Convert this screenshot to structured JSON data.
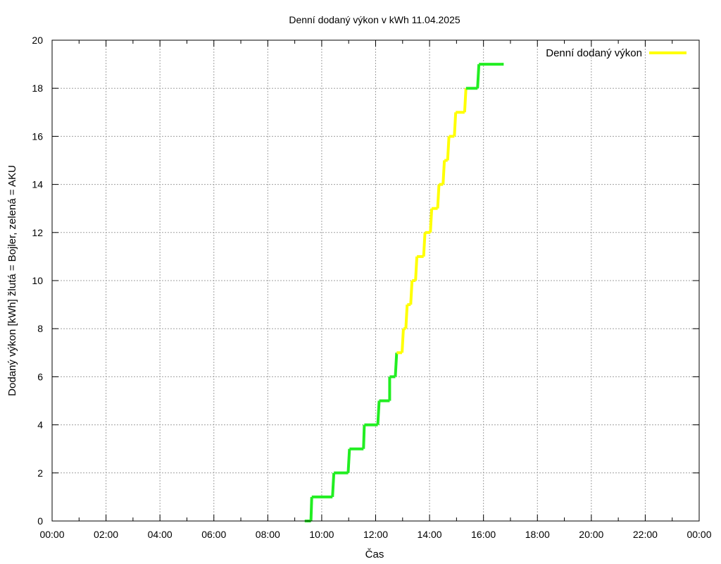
{
  "chart_data": {
    "type": "line",
    "title": "Denní dodaný výkon v kWh 11.04.2025",
    "xlabel": "Čas",
    "ylabel": "Dodaný výkon [kWh]  žlutá = Bojler, zelená = AKU",
    "xlim": [
      0,
      24
    ],
    "ylim": [
      0,
      20
    ],
    "x_ticks": [
      0,
      2,
      4,
      6,
      8,
      10,
      12,
      14,
      16,
      18,
      20,
      22,
      24
    ],
    "x_tick_labels": [
      "00:00",
      "02:00",
      "04:00",
      "06:00",
      "08:00",
      "10:00",
      "12:00",
      "14:00",
      "16:00",
      "18:00",
      "20:00",
      "22:00",
      "00:00"
    ],
    "y_ticks": [
      0,
      2,
      4,
      6,
      8,
      10,
      12,
      14,
      16,
      18,
      20
    ],
    "y_tick_labels": [
      "0",
      "2",
      "4",
      "6",
      "8",
      "10",
      "12",
      "14",
      "16",
      "18",
      "20"
    ],
    "grid": true,
    "legend": {
      "position": "top-right",
      "entries": [
        {
          "label": "Denní dodaný výkon",
          "color": "#ffff00"
        }
      ]
    },
    "colors": {
      "aku": "#22ee22",
      "bojler": "#ffff00",
      "grid": "#a0a0a0"
    },
    "series": [
      {
        "points": [
          {
            "x": 9.37,
            "y": 0,
            "c": "aku"
          },
          {
            "x": 9.42,
            "y": 0,
            "c": "aku"
          },
          {
            "x": 9.6,
            "y": 0,
            "c": "aku"
          },
          {
            "x": 9.63,
            "y": 1,
            "c": "aku"
          },
          {
            "x": 10.4,
            "y": 1,
            "c": "aku"
          },
          {
            "x": 10.45,
            "y": 2,
            "c": "aku"
          },
          {
            "x": 10.98,
            "y": 2,
            "c": "aku"
          },
          {
            "x": 11.03,
            "y": 3,
            "c": "aku"
          },
          {
            "x": 11.55,
            "y": 3,
            "c": "aku"
          },
          {
            "x": 11.58,
            "y": 4,
            "c": "aku"
          },
          {
            "x": 12.08,
            "y": 4,
            "c": "aku"
          },
          {
            "x": 12.13,
            "y": 5,
            "c": "aku"
          },
          {
            "x": 12.52,
            "y": 5,
            "c": "aku"
          },
          {
            "x": 12.52,
            "y": 6,
            "c": "aku"
          },
          {
            "x": 12.73,
            "y": 6,
            "c": "aku"
          },
          {
            "x": 12.78,
            "y": 7,
            "c": "aku"
          },
          {
            "x": 12.78,
            "y": 7,
            "c": "bojler"
          },
          {
            "x": 12.98,
            "y": 7,
            "c": "bojler"
          },
          {
            "x": 13.03,
            "y": 8,
            "c": "bojler"
          },
          {
            "x": 13.12,
            "y": 8,
            "c": "bojler"
          },
          {
            "x": 13.17,
            "y": 9,
            "c": "bojler"
          },
          {
            "x": 13.3,
            "y": 9,
            "c": "bojler"
          },
          {
            "x": 13.35,
            "y": 10,
            "c": "bojler"
          },
          {
            "x": 13.48,
            "y": 10,
            "c": "bojler"
          },
          {
            "x": 13.53,
            "y": 11,
            "c": "bojler"
          },
          {
            "x": 13.78,
            "y": 11,
            "c": "bojler"
          },
          {
            "x": 13.83,
            "y": 12,
            "c": "bojler"
          },
          {
            "x": 14.03,
            "y": 12,
            "c": "bojler"
          },
          {
            "x": 14.08,
            "y": 13,
            "c": "bojler"
          },
          {
            "x": 14.3,
            "y": 13,
            "c": "bojler"
          },
          {
            "x": 14.35,
            "y": 14,
            "c": "bojler"
          },
          {
            "x": 14.5,
            "y": 14,
            "c": "bojler"
          },
          {
            "x": 14.55,
            "y": 15,
            "c": "bojler"
          },
          {
            "x": 14.67,
            "y": 15,
            "c": "bojler"
          },
          {
            "x": 14.72,
            "y": 16,
            "c": "bojler"
          },
          {
            "x": 14.92,
            "y": 16,
            "c": "bojler"
          },
          {
            "x": 14.97,
            "y": 17,
            "c": "bojler"
          },
          {
            "x": 15.3,
            "y": 17,
            "c": "bojler"
          },
          {
            "x": 15.35,
            "y": 18,
            "c": "bojler"
          },
          {
            "x": 15.35,
            "y": 18,
            "c": "aku"
          },
          {
            "x": 15.78,
            "y": 18,
            "c": "aku"
          },
          {
            "x": 15.83,
            "y": 19,
            "c": "aku"
          },
          {
            "x": 16.65,
            "y": 19,
            "c": "aku"
          },
          {
            "x": 16.75,
            "y": 19,
            "c": "aku"
          }
        ]
      }
    ]
  }
}
